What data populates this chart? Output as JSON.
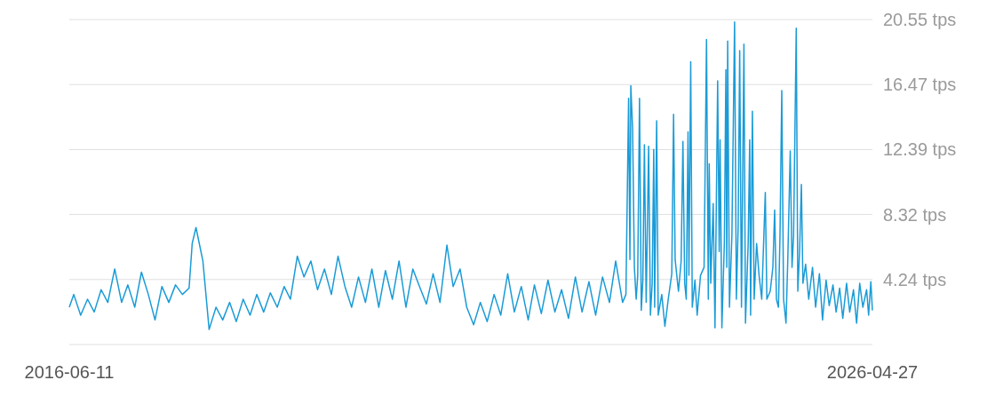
{
  "chart_data": {
    "type": "line",
    "color": "#1a9bd7",
    "grid": "y",
    "marker": "none",
    "line_style": "solid",
    "xlim": [
      "2016-06-11",
      "2026-04-27"
    ],
    "xticks": [
      "2016-06-11",
      "2026-04-27"
    ],
    "ylim": [
      0.16,
      20.55
    ],
    "yticks": [
      {
        "value": 0.16,
        "label": null
      },
      {
        "value": 4.24,
        "label": "4.24 tps"
      },
      {
        "value": 8.32,
        "label": "8.32 tps"
      },
      {
        "value": 12.39,
        "label": "12.39 tps"
      },
      {
        "value": 16.47,
        "label": "16.47 tps"
      },
      {
        "value": 20.55,
        "label": "20.55 tps"
      }
    ],
    "x": [
      "2016-06-11",
      "2016-07",
      "2016-08",
      "2016-09",
      "2016-10",
      "2016-11",
      "2016-12",
      "2017-01",
      "2017-02",
      "2017-03",
      "2017-04",
      "2017-05",
      "2017-06",
      "2017-07",
      "2017-08",
      "2017-09",
      "2017-10",
      "2017-11",
      "2017-12",
      "2017-12-15",
      "2018-01",
      "2018-02",
      "2018-03",
      "2018-04",
      "2018-05",
      "2018-06",
      "2018-07",
      "2018-08",
      "2018-09",
      "2018-10",
      "2018-11",
      "2018-12",
      "2019-01",
      "2019-02",
      "2019-03",
      "2019-04",
      "2019-05",
      "2019-06",
      "2019-07",
      "2019-08",
      "2019-09",
      "2019-10",
      "2019-11",
      "2019-12",
      "2020-01",
      "2020-02",
      "2020-03",
      "2020-04",
      "2020-05",
      "2020-06",
      "2020-07",
      "2020-08",
      "2020-09",
      "2020-10",
      "2020-11",
      "2020-12",
      "2021-01",
      "2021-02",
      "2021-03",
      "2021-04",
      "2021-05",
      "2021-06",
      "2021-07",
      "2021-08",
      "2021-09",
      "2021-10",
      "2021-11",
      "2021-12",
      "2022-01",
      "2022-02",
      "2022-03",
      "2022-04",
      "2022-05",
      "2022-06",
      "2022-07",
      "2022-08",
      "2022-09",
      "2022-10",
      "2022-11",
      "2022-12",
      "2023-01",
      "2023-02",
      "2023-03",
      "2023-04-01",
      "2023-04-16",
      "2023-04-28",
      "2023-05-04",
      "2023-05-08",
      "2023-05-16",
      "2023-05-24",
      "2023-06-01",
      "2023-06-08",
      "2023-06-16",
      "2023-06-24",
      "2023-07-01",
      "2023-07-08",
      "2023-07-16",
      "2023-07-27",
      "2023-08-04",
      "2023-08-12",
      "2023-08-19",
      "2023-08-23",
      "2023-09-01",
      "2023-09-08",
      "2023-09-24",
      "2023-10-08",
      "2023-10-23",
      "2023-11-08",
      "2023-11-16",
      "2023-11-23",
      "2023-12-08",
      "2023-12-20",
      "2023-12-28",
      "2024-01-05",
      "2024-01-12",
      "2024-01-20",
      "2024-01-24",
      "2024-02-01",
      "2024-02-08",
      "2024-02-20",
      "2024-03-01",
      "2024-03-16",
      "2024-04-01",
      "2024-04-12",
      "2024-04-20",
      "2024-04-24",
      "2024-05-01",
      "2024-05-12",
      "2024-05-20",
      "2024-06-01",
      "2024-06-08",
      "2024-06-12",
      "2024-06-20",
      "2024-07-01",
      "2024-07-08",
      "2024-07-12",
      "2024-07-16",
      "2024-07-24",
      "2024-08-04",
      "2024-08-16",
      "2024-08-24",
      "2024-09-01",
      "2024-09-08",
      "2024-09-16",
      "2024-09-27",
      "2024-10-04",
      "2024-10-16",
      "2024-10-23",
      "2024-10-27",
      "2024-11-04",
      "2024-11-12",
      "2024-11-23",
      "2024-12-04",
      "2024-12-16",
      "2025-01-01",
      "2025-01-08",
      "2025-01-23",
      "2025-02-04",
      "2025-02-12",
      "2025-02-20",
      "2025-03-01",
      "2025-03-08",
      "2025-03-16",
      "2025-03-24",
      "2025-04-04",
      "2025-04-12",
      "2025-04-23",
      "2025-05-01",
      "2025-05-08",
      "2025-05-20",
      "2025-05-27",
      "2025-06-04",
      "2025-06-12",
      "2025-06-19",
      "2025-07-01",
      "2025-07-15",
      "2025-08",
      "2025-08-15",
      "2025-09",
      "2025-09-15",
      "2025-10",
      "2025-10-15",
      "2025-11",
      "2025-11-15",
      "2025-12",
      "2025-12-15",
      "2026-01",
      "2026-01-15",
      "2026-02",
      "2026-02-15",
      "2026-03",
      "2026-03-15",
      "2026-04-01",
      "2026-04-10",
      "2026-04-20",
      "2026-04-27"
    ],
    "values": [
      2.5,
      3.3,
      2.0,
      3.0,
      2.2,
      3.6,
      2.8,
      4.9,
      2.8,
      3.9,
      2.5,
      4.7,
      3.3,
      1.7,
      3.8,
      2.8,
      3.9,
      3.3,
      3.7,
      6.5,
      7.5,
      5.4,
      1.1,
      2.5,
      1.7,
      2.8,
      1.6,
      3.0,
      2.0,
      3.3,
      2.2,
      3.4,
      2.5,
      3.8,
      3.0,
      5.7,
      4.4,
      5.4,
      3.6,
      4.9,
      3.3,
      5.7,
      3.8,
      2.5,
      4.4,
      2.8,
      4.9,
      2.5,
      4.8,
      3.0,
      5.4,
      2.5,
      4.9,
      3.8,
      2.7,
      4.6,
      2.8,
      6.4,
      3.8,
      4.9,
      2.5,
      1.4,
      2.8,
      1.6,
      3.3,
      2.0,
      4.6,
      2.2,
      3.8,
      1.7,
      3.9,
      2.1,
      4.2,
      2.2,
      3.6,
      1.8,
      4.4,
      2.2,
      4.1,
      2.0,
      4.4,
      2.8,
      5.4,
      2.8,
      3.3,
      15.6,
      5.5,
      16.4,
      13.7,
      5.0,
      3.0,
      4.5,
      15.6,
      2.3,
      4.2,
      12.7,
      2.8,
      12.6,
      2.0,
      4.0,
      12.4,
      2.5,
      14.2,
      2.0,
      3.3,
      1.3,
      3.0,
      4.6,
      14.6,
      5.5,
      3.5,
      5.4,
      12.9,
      4.0,
      3.0,
      13.5,
      4.5,
      17.9,
      2.5,
      4.2,
      2.0,
      4.5,
      5.0,
      19.3,
      3.0,
      11.5,
      4.0,
      9.0,
      1.2,
      16.7,
      6.0,
      13.0,
      1.2,
      6.5,
      17.4,
      5.0,
      19.2,
      2.5,
      7.0,
      20.4,
      3.0,
      7.5,
      18.6,
      2.5,
      19.0,
      1.5,
      6.5,
      13.0,
      2.0,
      14.8,
      3.0,
      6.5,
      4.5,
      3.0,
      9.7,
      3.0,
      3.5,
      5.0,
      8.6,
      3.0,
      2.5,
      7.0,
      16.1,
      3.0,
      1.5,
      5.5,
      12.3,
      5.0,
      7.0,
      20.0,
      3.5,
      6.0,
      10.2,
      4.0,
      5.2,
      3.0,
      5.0,
      2.5,
      4.6,
      1.7,
      4.2,
      2.6,
      3.9,
      2.2,
      3.7,
      1.8,
      4.0,
      2.2,
      3.6,
      1.5,
      4.0,
      2.5,
      3.6,
      2.0,
      4.1,
      2.3
    ]
  }
}
